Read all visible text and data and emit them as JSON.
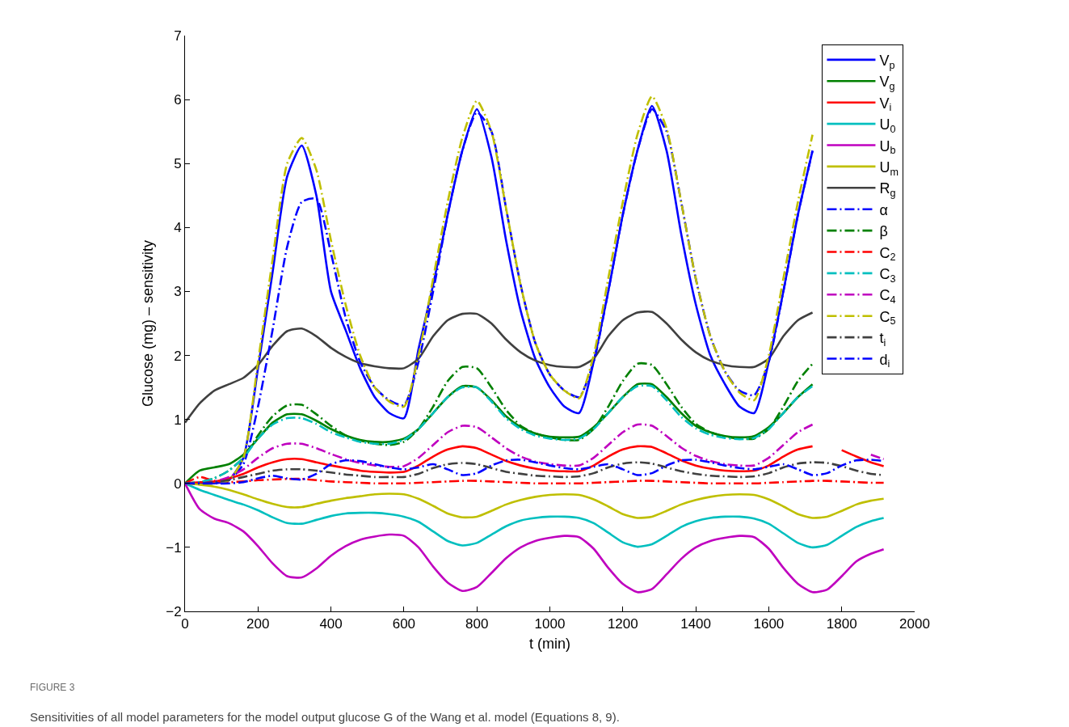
{
  "chart_data": {
    "type": "line",
    "xlabel": "t (min)",
    "ylabel": "Glucose (mg) – sensitivity",
    "x": [
      0,
      40,
      80,
      120,
      160,
      200,
      240,
      280,
      320,
      360,
      400,
      440,
      480,
      520,
      560,
      600,
      640,
      680,
      720,
      760,
      800,
      840,
      880,
      920,
      960,
      1000,
      1040,
      1080,
      1120,
      1160,
      1200,
      1240,
      1280,
      1320,
      1360,
      1400,
      1440,
      1480,
      1520,
      1560,
      1600,
      1640,
      1680,
      1720,
      1760,
      1800,
      1840,
      1880,
      1915
    ],
    "xlim": [
      0,
      2000
    ],
    "xticks": [
      0,
      200,
      400,
      600,
      800,
      1000,
      1200,
      1400,
      1600,
      1800,
      2000
    ],
    "ylim": [
      -2,
      7
    ],
    "yticks": [
      {
        "value": -2,
        "label": "−2"
      },
      {
        "value": -1,
        "label": "−1"
      },
      0,
      1,
      2,
      3,
      4,
      5,
      6,
      7
    ],
    "legend": "top right",
    "series": [
      {
        "name": "V$_{p}$",
        "color": "#0000ff",
        "line_style": "solid",
        "values": [
          0,
          0,
          0,
          0.05,
          0.4,
          1.8,
          3.3,
          4.8,
          5.28,
          4.5,
          3.0,
          2.4,
          1.8,
          1.35,
          1.1,
          1.02,
          2.1,
          3.1,
          4.2,
          5.2,
          5.85,
          5.1,
          3.8,
          2.7,
          1.95,
          1.5,
          1.2,
          1.1,
          1.9,
          3.0,
          4.2,
          5.2,
          5.9,
          5.2,
          3.9,
          2.8,
          2.0,
          1.55,
          1.2,
          1.1,
          1.9,
          3.0,
          4.2,
          5.2,
          null,
          null,
          null,
          null,
          null
        ]
      },
      {
        "name": "V$_{g}$",
        "color": "#008000",
        "line_style": "solid",
        "values": [
          0,
          0.2,
          0.25,
          0.3,
          0.45,
          0.7,
          0.95,
          1.08,
          1.08,
          0.98,
          0.85,
          0.75,
          0.68,
          0.65,
          0.65,
          0.7,
          0.85,
          1.1,
          1.35,
          1.52,
          1.5,
          1.3,
          1.05,
          0.88,
          0.78,
          0.73,
          0.72,
          0.73,
          0.88,
          1.1,
          1.35,
          1.55,
          1.55,
          1.35,
          1.1,
          0.9,
          0.8,
          0.74,
          0.72,
          0.74,
          0.88,
          1.1,
          1.35,
          1.55,
          null,
          null,
          null,
          null,
          null
        ]
      },
      {
        "name": "V$_{i}$",
        "color": "#ff0000",
        "line_style": "solid",
        "values": [
          0,
          0.02,
          0.03,
          0.08,
          0.15,
          0.25,
          0.33,
          0.38,
          0.38,
          0.33,
          0.28,
          0.24,
          0.2,
          0.18,
          0.17,
          0.18,
          0.28,
          0.42,
          0.53,
          0.58,
          0.55,
          0.45,
          0.35,
          0.28,
          0.23,
          0.2,
          0.19,
          0.19,
          0.28,
          0.42,
          0.53,
          0.58,
          0.57,
          0.47,
          0.36,
          0.28,
          0.23,
          0.2,
          0.19,
          0.2,
          0.28,
          0.42,
          0.53,
          0.58,
          null,
          0.52,
          0.42,
          0.33,
          0.27
        ]
      },
      {
        "name": "U$_{0}$",
        "color": "#00bfbf",
        "line_style": "solid",
        "values": [
          0,
          -0.1,
          -0.18,
          -0.26,
          -0.33,
          -0.42,
          -0.53,
          -0.62,
          -0.63,
          -0.57,
          -0.51,
          -0.47,
          -0.46,
          -0.46,
          -0.48,
          -0.52,
          -0.6,
          -0.75,
          -0.9,
          -0.97,
          -0.93,
          -0.8,
          -0.67,
          -0.58,
          -0.54,
          -0.52,
          -0.52,
          -0.54,
          -0.62,
          -0.77,
          -0.92,
          -0.99,
          -0.95,
          -0.82,
          -0.68,
          -0.59,
          -0.54,
          -0.52,
          -0.52,
          -0.55,
          -0.63,
          -0.78,
          -0.93,
          -1.0,
          -0.96,
          -0.82,
          -0.68,
          -0.59,
          -0.54
        ]
      },
      {
        "name": "U$_{b}$",
        "color": "#bf00bf",
        "line_style": "solid",
        "values": [
          0,
          -0.4,
          -0.55,
          -0.62,
          -0.75,
          -0.98,
          -1.25,
          -1.45,
          -1.47,
          -1.33,
          -1.13,
          -0.98,
          -0.88,
          -0.83,
          -0.8,
          -0.82,
          -1.0,
          -1.3,
          -1.55,
          -1.68,
          -1.62,
          -1.4,
          -1.17,
          -1.0,
          -0.9,
          -0.85,
          -0.82,
          -0.84,
          -1.02,
          -1.32,
          -1.57,
          -1.7,
          -1.65,
          -1.42,
          -1.18,
          -1.0,
          -0.9,
          -0.85,
          -0.82,
          -0.84,
          -1.02,
          -1.32,
          -1.57,
          -1.7,
          -1.66,
          -1.45,
          -1.22,
          -1.1,
          -1.03
        ]
      },
      {
        "name": "U$_{m}$",
        "color": "#bfbf00",
        "line_style": "solid",
        "values": [
          0,
          -0.02,
          -0.05,
          -0.1,
          -0.17,
          -0.25,
          -0.32,
          -0.37,
          -0.37,
          -0.32,
          -0.27,
          -0.23,
          -0.2,
          -0.17,
          -0.16,
          -0.17,
          -0.24,
          -0.35,
          -0.47,
          -0.53,
          -0.52,
          -0.43,
          -0.33,
          -0.26,
          -0.21,
          -0.18,
          -0.17,
          -0.18,
          -0.25,
          -0.36,
          -0.48,
          -0.54,
          -0.52,
          -0.43,
          -0.33,
          -0.26,
          -0.21,
          -0.18,
          -0.17,
          -0.18,
          -0.25,
          -0.36,
          -0.48,
          -0.54,
          -0.52,
          -0.43,
          -0.33,
          -0.27,
          -0.24
        ]
      },
      {
        "name": "R$_{g}$",
        "color": "#404040",
        "line_style": "solid",
        "values": [
          0.95,
          1.25,
          1.45,
          1.55,
          1.65,
          1.85,
          2.15,
          2.38,
          2.42,
          2.3,
          2.12,
          1.98,
          1.88,
          1.83,
          1.8,
          1.8,
          1.95,
          2.3,
          2.55,
          2.65,
          2.65,
          2.5,
          2.25,
          2.05,
          1.92,
          1.85,
          1.82,
          1.82,
          1.95,
          2.3,
          2.55,
          2.67,
          2.68,
          2.5,
          2.25,
          2.05,
          1.92,
          1.85,
          1.82,
          1.82,
          1.95,
          2.3,
          2.55,
          2.67,
          null,
          null,
          null,
          null,
          null
        ]
      },
      {
        "name": "α",
        "color": "#0000ff",
        "line_style": "dashed",
        "values": [
          0,
          0,
          0,
          0.05,
          0.3,
          1.2,
          2.4,
          3.7,
          4.4,
          4.45,
          3.6,
          2.6,
          1.9,
          1.5,
          1.3,
          1.22,
          1.9,
          3.0,
          4.2,
          5.2,
          5.8,
          5.5,
          4.3,
          3.1,
          2.2,
          1.7,
          1.45,
          1.35,
          1.9,
          3.0,
          4.2,
          5.2,
          5.85,
          5.5,
          4.4,
          3.2,
          2.3,
          1.75,
          1.45,
          1.38,
          1.9,
          3.0,
          4.2,
          5.2,
          null,
          null,
          null,
          null,
          null
        ]
      },
      {
        "name": "β",
        "color": "#008000",
        "line_style": "dashed",
        "values": [
          0,
          0.02,
          0.08,
          0.2,
          0.4,
          0.75,
          1.05,
          1.22,
          1.23,
          1.08,
          0.9,
          0.75,
          0.67,
          0.62,
          0.6,
          0.65,
          0.85,
          1.2,
          1.6,
          1.82,
          1.8,
          1.5,
          1.15,
          0.9,
          0.78,
          0.72,
          0.68,
          0.68,
          0.85,
          1.2,
          1.6,
          1.87,
          1.85,
          1.55,
          1.2,
          0.93,
          0.8,
          0.73,
          0.7,
          0.7,
          0.85,
          1.2,
          1.6,
          1.87,
          null,
          null,
          null,
          null,
          null
        ]
      },
      {
        "name": "C$_{2}$",
        "color": "#ff0000",
        "line_style": "dashed",
        "values": [
          0,
          0.1,
          0.04,
          0.02,
          0.03,
          0.05,
          0.06,
          0.07,
          0.07,
          0.05,
          0.03,
          0.02,
          0.01,
          0,
          0,
          0,
          0.01,
          0.02,
          0.03,
          0.04,
          0.04,
          0.03,
          0.02,
          0.01,
          0,
          0,
          0,
          0,
          0.01,
          0.02,
          0.03,
          0.04,
          0.04,
          0.03,
          0.02,
          0.01,
          0,
          0,
          0,
          0,
          0.01,
          0.02,
          0.03,
          0.04,
          0.04,
          0.03,
          0.02,
          0.01,
          0.01
        ]
      },
      {
        "name": "C$_{3}$",
        "color": "#00bfbf",
        "line_style": "dashed",
        "values": [
          0,
          0.02,
          0.08,
          0.2,
          0.4,
          0.7,
          0.92,
          1.02,
          1.02,
          0.93,
          0.8,
          0.72,
          0.65,
          0.62,
          0.62,
          0.68,
          0.85,
          1.1,
          1.35,
          1.5,
          1.5,
          1.28,
          1.02,
          0.85,
          0.75,
          0.7,
          0.68,
          0.7,
          0.85,
          1.1,
          1.35,
          1.52,
          1.52,
          1.3,
          1.04,
          0.86,
          0.76,
          0.71,
          0.69,
          0.71,
          0.85,
          1.1,
          1.35,
          1.52,
          null,
          null,
          null,
          null,
          null
        ]
      },
      {
        "name": "C$_{4}$",
        "color": "#bf00bf",
        "line_style": "dashed",
        "values": [
          0,
          0,
          0.03,
          0.1,
          0.22,
          0.4,
          0.55,
          0.62,
          0.62,
          0.55,
          0.46,
          0.38,
          0.32,
          0.28,
          0.26,
          0.27,
          0.4,
          0.6,
          0.8,
          0.9,
          0.88,
          0.72,
          0.55,
          0.42,
          0.34,
          0.3,
          0.28,
          0.28,
          0.4,
          0.6,
          0.8,
          0.92,
          0.9,
          0.74,
          0.56,
          0.43,
          0.35,
          0.3,
          0.28,
          0.28,
          0.4,
          0.6,
          0.8,
          0.92,
          null,
          null,
          null,
          0.45,
          0.38
        ]
      },
      {
        "name": "C$_{5}$",
        "color": "#bfbf00",
        "line_style": "dashed",
        "values": [
          0,
          0,
          0,
          0.05,
          0.4,
          1.9,
          3.5,
          5.0,
          5.4,
          4.9,
          3.8,
          2.8,
          2.0,
          1.5,
          1.28,
          1.2,
          2.0,
          3.2,
          4.4,
          5.4,
          5.98,
          5.5,
          4.3,
          3.1,
          2.2,
          1.7,
          1.45,
          1.33,
          2.0,
          3.2,
          4.4,
          5.45,
          6.05,
          5.55,
          4.4,
          3.2,
          2.3,
          1.75,
          1.42,
          1.3,
          2.0,
          3.2,
          4.4,
          5.45,
          null,
          null,
          null,
          null,
          null
        ]
      },
      {
        "name": "t$_{i}$",
        "color": "#404040",
        "line_style": "dashed",
        "values": [
          0,
          0,
          0.02,
          0.05,
          0.1,
          0.15,
          0.2,
          0.22,
          0.22,
          0.2,
          0.17,
          0.14,
          0.12,
          0.1,
          0.1,
          0.1,
          0.15,
          0.24,
          0.3,
          0.32,
          0.3,
          0.24,
          0.18,
          0.15,
          0.12,
          0.11,
          0.1,
          0.11,
          0.16,
          0.25,
          0.31,
          0.33,
          0.31,
          0.25,
          0.19,
          0.15,
          0.12,
          0.11,
          0.1,
          0.11,
          0.16,
          0.25,
          0.31,
          0.33,
          0.32,
          0.27,
          0.2,
          0.15,
          0.13
        ]
      },
      {
        "name": "d$_{i}$",
        "color": "#0000ff",
        "line_style": "dashed",
        "values": [
          0,
          0,
          0,
          0,
          0.02,
          0.08,
          0.12,
          0.08,
          0.06,
          0.15,
          0.3,
          0.36,
          0.35,
          0.3,
          0.25,
          0.22,
          0.25,
          0.3,
          0.22,
          0.13,
          0.16,
          0.28,
          0.36,
          0.37,
          0.33,
          0.28,
          0.24,
          0.22,
          0.26,
          0.3,
          0.22,
          0.13,
          0.16,
          0.28,
          0.36,
          0.37,
          0.33,
          0.28,
          0.24,
          0.22,
          0.26,
          0.3,
          0.22,
          0.13,
          0.16,
          0.28,
          0.36,
          0.37,
          0.35
        ]
      }
    ],
    "annotations": [
      "FIGURE 3",
      "Sensitivities of all model parameters for the model output glucose G of the Wang et al. model (Equations 8, 9)."
    ]
  }
}
